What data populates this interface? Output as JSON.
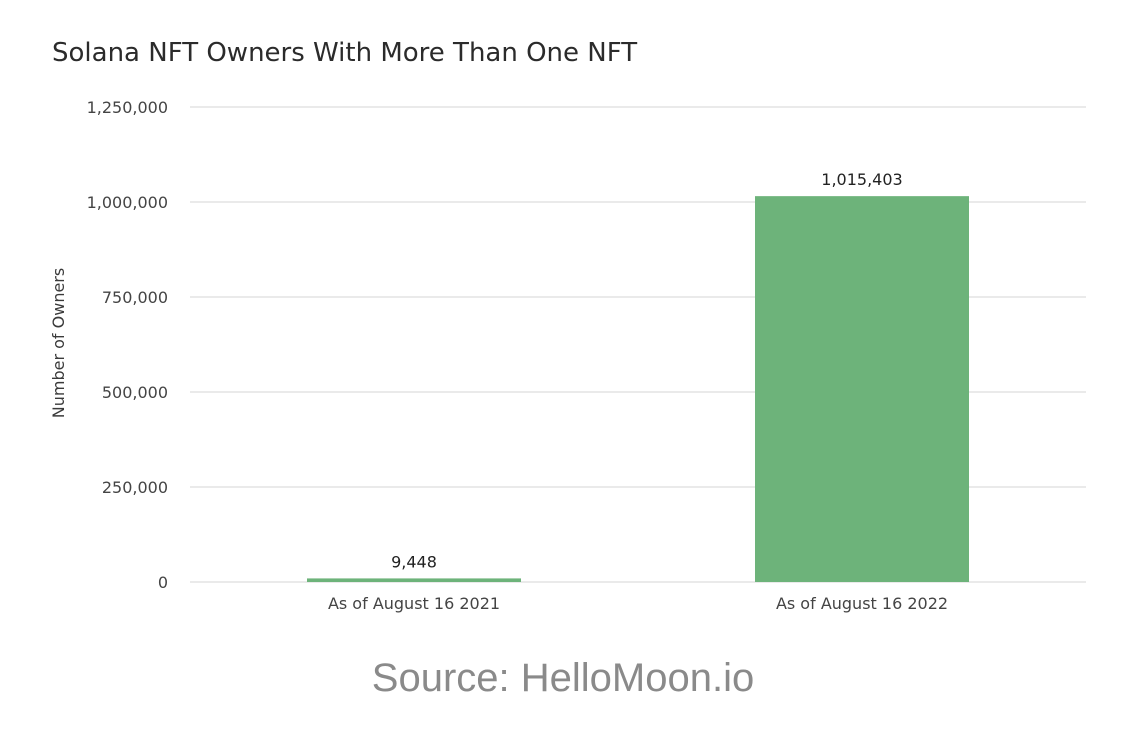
{
  "chart_data": {
    "type": "bar",
    "title": "Solana NFT Owners With More Than One NFT",
    "xlabel": "",
    "ylabel": "Number of Owners",
    "categories": [
      "As of August 16 2021",
      "As of August 16 2022"
    ],
    "values": [
      9448,
      1015403
    ],
    "data_labels": [
      "9,448",
      "1,015,403"
    ],
    "ylim": [
      0,
      1250000
    ],
    "yticks": [
      0,
      250000,
      500000,
      750000,
      1000000,
      1250000
    ],
    "ytick_labels": [
      "0",
      "250,000",
      "500,000",
      "750,000",
      "1,000,000",
      "1,250,000"
    ],
    "grid": true,
    "legend": "none",
    "bar_color": "#6db37a",
    "grid_color": "#e3e3e3"
  },
  "source": "Source: HelloMoon.io"
}
